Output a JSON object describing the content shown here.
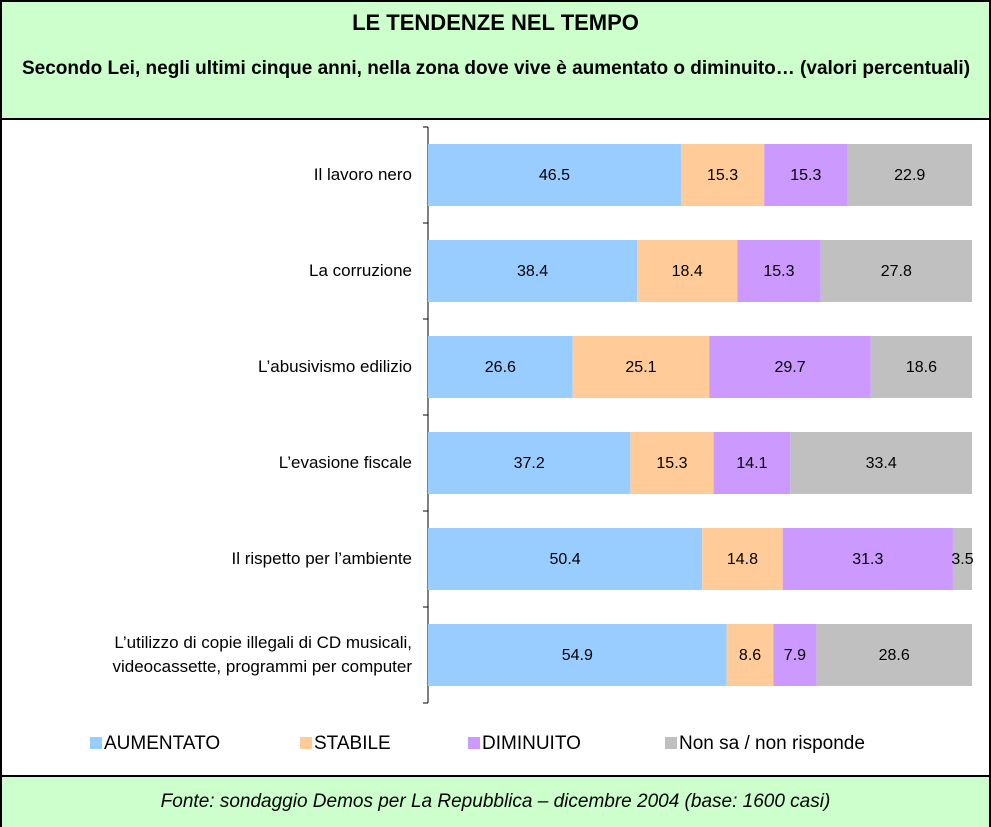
{
  "chart_data": {
    "type": "stacked-bar-horizontal",
    "title": "LE TENDENZE NEL TEMPO",
    "subtitle": "Secondo Lei, negli ultimi cinque anni, nella zona dove vive è aumentato o diminuito… (valori percentuali)",
    "categories": [
      "Il lavoro nero",
      "La corruzione",
      "L’abusivismo edilizio",
      "L’evasione fiscale",
      "Il rispetto per l’ambiente",
      "L’utilizzo di copie illegali di CD musicali, videocassette, programmi per computer"
    ],
    "series": [
      {
        "name": "AUMENTATO",
        "color": "#99ccff",
        "values": [
          46.5,
          38.4,
          26.6,
          37.2,
          50.4,
          54.9
        ]
      },
      {
        "name": "STABILE",
        "color": "#ffcc99",
        "values": [
          15.3,
          18.4,
          25.1,
          15.3,
          14.8,
          8.6
        ]
      },
      {
        "name": "DIMINUITO",
        "color": "#cc99ff",
        "values": [
          15.3,
          15.3,
          29.7,
          14.1,
          31.3,
          7.9
        ]
      },
      {
        "name": "Non sa / non risponde",
        "color": "#c0c0c0",
        "values": [
          22.9,
          27.8,
          18.6,
          33.4,
          3.5,
          28.6
        ]
      }
    ],
    "source": "Fonte: sondaggio Demos per La Repubblica – dicembre 2004 (base: 1600 casi)"
  }
}
